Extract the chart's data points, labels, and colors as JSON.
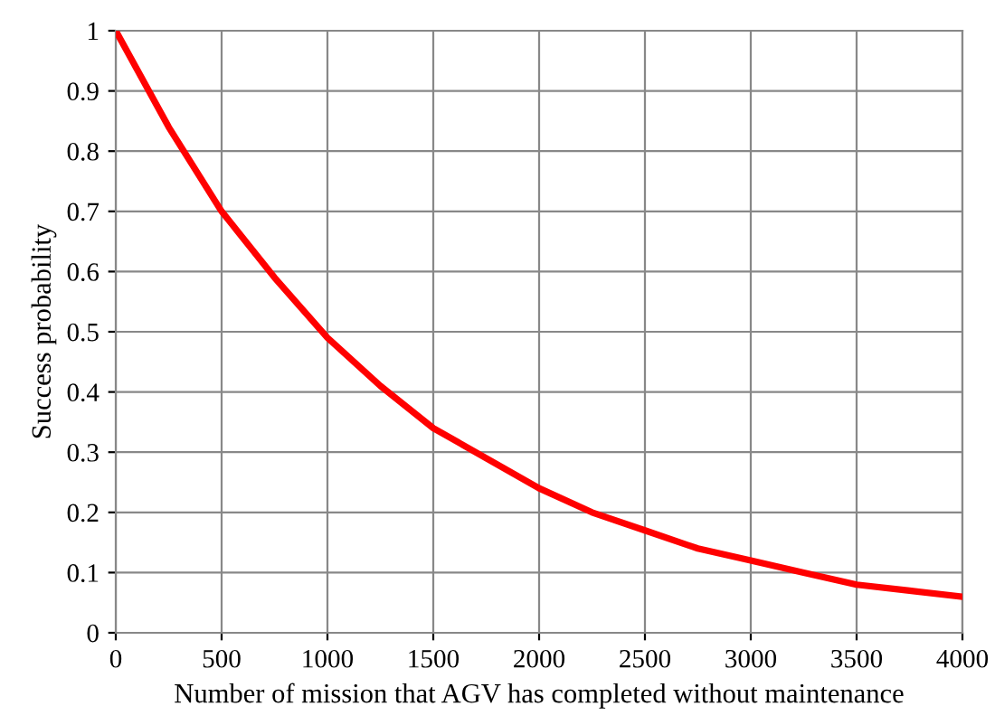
{
  "chart_data": {
    "type": "line",
    "xlabel": "Number of mission that AGV has completed without maintenance",
    "ylabel": "Success probability",
    "x": [
      0,
      250,
      500,
      750,
      1000,
      1250,
      1500,
      1750,
      2000,
      2250,
      2500,
      2750,
      3000,
      3250,
      3500,
      3750,
      4000
    ],
    "series": [
      {
        "color": "#ff0000",
        "values": [
          1,
          0.84,
          0.7,
          0.59,
          0.49,
          0.41,
          0.34,
          0.29,
          0.24,
          0.2,
          0.17,
          0.14,
          0.12,
          0.1,
          0.08,
          0.07,
          0.06
        ]
      }
    ],
    "xlim": [
      0,
      4000
    ],
    "xticks": [
      0,
      500,
      1000,
      1500,
      2000,
      2500,
      3000,
      3500,
      4000
    ],
    "ylim": [
      0,
      1
    ],
    "yticks": [
      0,
      0.1,
      0.2,
      0.3,
      0.4,
      0.5,
      0.6,
      0.7,
      0.8,
      0.9,
      1
    ],
    "grid": true,
    "legend": false,
    "marker": "none",
    "line_style": "solid"
  }
}
